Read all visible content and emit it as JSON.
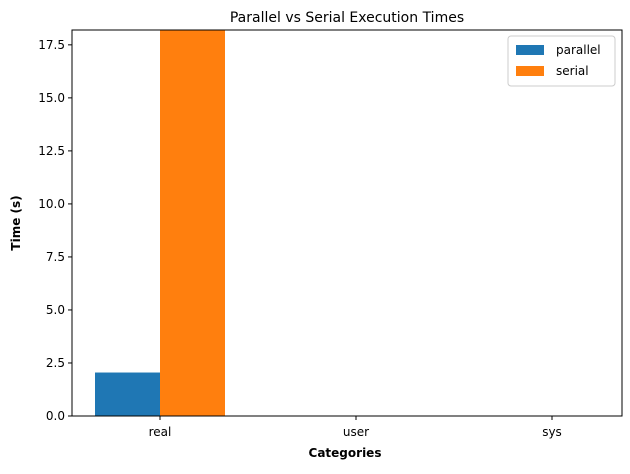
{
  "chart_data": {
    "type": "bar",
    "title": "Parallel vs Serial Execution Times",
    "xlabel": "Categories",
    "ylabel": "Time (s)",
    "categories": [
      "real",
      "user",
      "sys"
    ],
    "series": [
      {
        "name": "parallel",
        "values": [
          2.05,
          0,
          0
        ],
        "color": "#1f77b4"
      },
      {
        "name": "serial",
        "values": [
          18.2,
          0,
          0
        ],
        "color": "#ff7f0e"
      }
    ],
    "ylim": [
      0,
      18.2
    ],
    "yticks": [
      "0.0",
      "2.5",
      "5.0",
      "7.5",
      "10.0",
      "12.5",
      "15.0",
      "17.5"
    ],
    "grid": false,
    "legend_position": "top-right"
  }
}
